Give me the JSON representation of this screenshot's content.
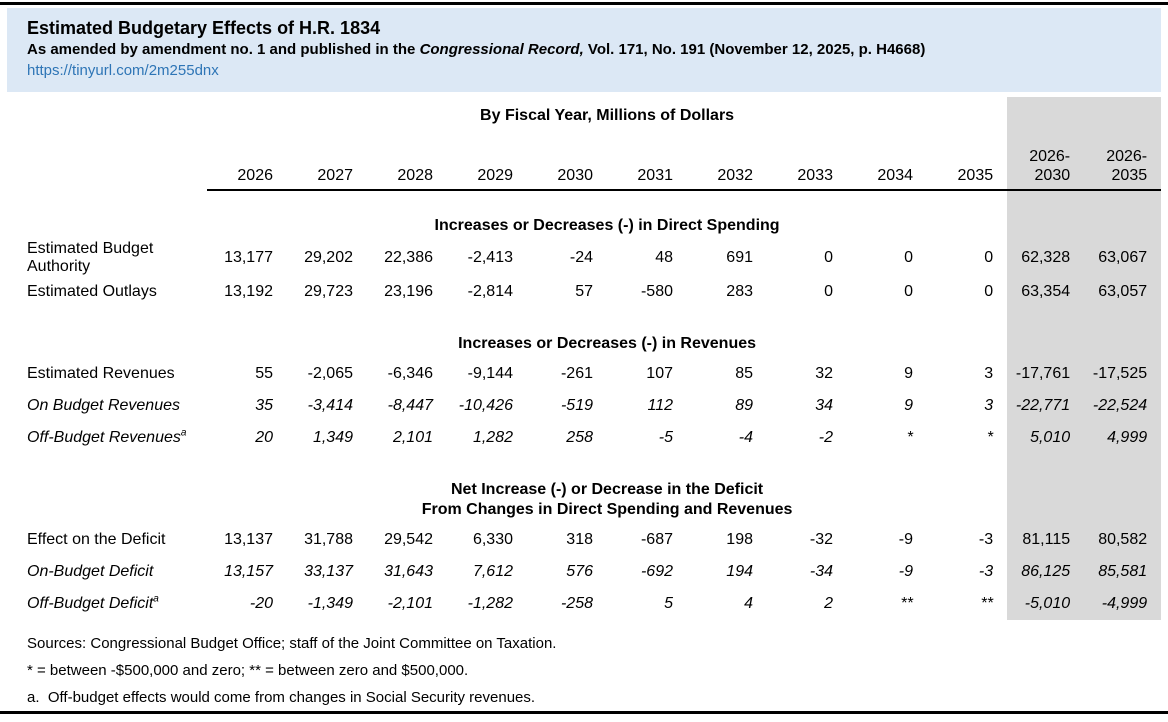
{
  "header": {
    "title": "Estimated Budgetary Effects of H.R. 1834",
    "subtitle_prefix": "As amended by amendment no. 1 and published in the ",
    "subtitle_italic": "Congressional Record,",
    "subtitle_suffix": " Vol. 171, No. 191 (November 12, 2025, p. H4668)",
    "link": "https://tinyurl.com/2m255dnx"
  },
  "table": {
    "unit_header": "By Fiscal Year, Millions of Dollars",
    "year_columns": [
      "2026",
      "2027",
      "2028",
      "2029",
      "2030",
      "2031",
      "2032",
      "2033",
      "2034",
      "2035"
    ],
    "total_columns": [
      [
        "2026-",
        "2030"
      ],
      [
        "2026-",
        "2035"
      ]
    ],
    "sections": [
      {
        "header_lines": [
          "Increases or Decreases (-) in Direct Spending"
        ],
        "rows": [
          {
            "label": "Estimated Budget Authority",
            "italic": false,
            "sup": "",
            "values": [
              "13,177",
              "29,202",
              "22,386",
              "-2,413",
              "-24",
              "48",
              "691",
              "0",
              "0",
              "0",
              "62,328",
              "63,067"
            ]
          },
          {
            "label": "Estimated Outlays",
            "italic": false,
            "sup": "",
            "values": [
              "13,192",
              "29,723",
              "23,196",
              "-2,814",
              "57",
              "-580",
              "283",
              "0",
              "0",
              "0",
              "63,354",
              "63,057"
            ]
          }
        ]
      },
      {
        "header_lines": [
          "Increases or Decreases (-) in Revenues"
        ],
        "rows": [
          {
            "label": "Estimated Revenues",
            "italic": false,
            "sup": "",
            "values": [
              "55",
              "-2,065",
              "-6,346",
              "-9,144",
              "-261",
              "107",
              "85",
              "32",
              "9",
              "3",
              "-17,761",
              "-17,525"
            ]
          },
          {
            "label": "On Budget Revenues",
            "italic": true,
            "sup": "",
            "values": [
              "35",
              "-3,414",
              "-8,447",
              "-10,426",
              "-519",
              "112",
              "89",
              "34",
              "9",
              "3",
              "-22,771",
              "-22,524"
            ]
          },
          {
            "label": "Off-Budget Revenues",
            "italic": true,
            "sup": "a",
            "values": [
              "20",
              "1,349",
              "2,101",
              "1,282",
              "258",
              "-5",
              "-4",
              "-2",
              "*",
              "*",
              "5,010",
              "4,999"
            ]
          }
        ]
      },
      {
        "header_lines": [
          "Net Increase (-) or Decrease in the Deficit",
          "From Changes in Direct Spending and Revenues"
        ],
        "rows": [
          {
            "label": "Effect on the Deficit",
            "italic": false,
            "sup": "",
            "values": [
              "13,137",
              "31,788",
              "29,542",
              "6,330",
              "318",
              "-687",
              "198",
              "-32",
              "-9",
              "-3",
              "81,115",
              "80,582"
            ]
          },
          {
            "label": "On-Budget Deficit",
            "italic": true,
            "sup": "",
            "values": [
              "13,157",
              "33,137",
              "31,643",
              "7,612",
              "576",
              "-692",
              "194",
              "-34",
              "-9",
              "-3",
              "86,125",
              "85,581"
            ]
          },
          {
            "label": "Off-Budget Deficit",
            "italic": true,
            "sup": "a",
            "values": [
              "-20",
              "-1,349",
              "-2,101",
              "-1,282",
              "-258",
              "5",
              "4",
              "2",
              "**",
              "**",
              "-5,010",
              "-4,999"
            ]
          }
        ]
      }
    ]
  },
  "footnotes": [
    "Sources: Congressional Budget Office; staff of the Joint Committee on Taxation.",
    "* = between -$500,000 and zero; ** = between zero and $500,000.",
    "a.  Off-budget effects would come from changes in Social Security revenues."
  ],
  "colors": {
    "header_bg": "#dce8f5",
    "shaded_col_bg": "#d9d9d9",
    "link": "#2e75b6",
    "rule": "#000000"
  }
}
